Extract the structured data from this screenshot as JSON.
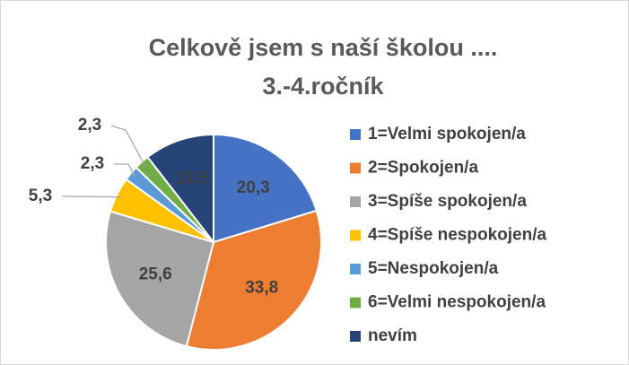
{
  "chart_data": {
    "type": "pie",
    "title": [
      "Celkově jsem s naší školou ....",
      "3.-4.ročník"
    ],
    "categories": [
      "1=Velmi spokojen/a",
      "2=Spokojen/a",
      "3=Spíše spokojen/a",
      "4=Spíše nespokojen/a",
      "5=Nespokojen/a",
      "6=Velmi nespokojen/a",
      "nevím"
    ],
    "values": [
      20.3,
      33.8,
      25.6,
      5.3,
      2.3,
      2.3,
      10.5
    ],
    "value_labels": [
      "20,3",
      "33,8",
      "25,6",
      "5,3",
      "2,3",
      "2,3",
      "10,5"
    ],
    "colors": [
      "#4472c4",
      "#ed7d31",
      "#a5a5a5",
      "#ffc000",
      "#5b9bd5",
      "#70ad47",
      "#264478"
    ],
    "legend": "right"
  }
}
